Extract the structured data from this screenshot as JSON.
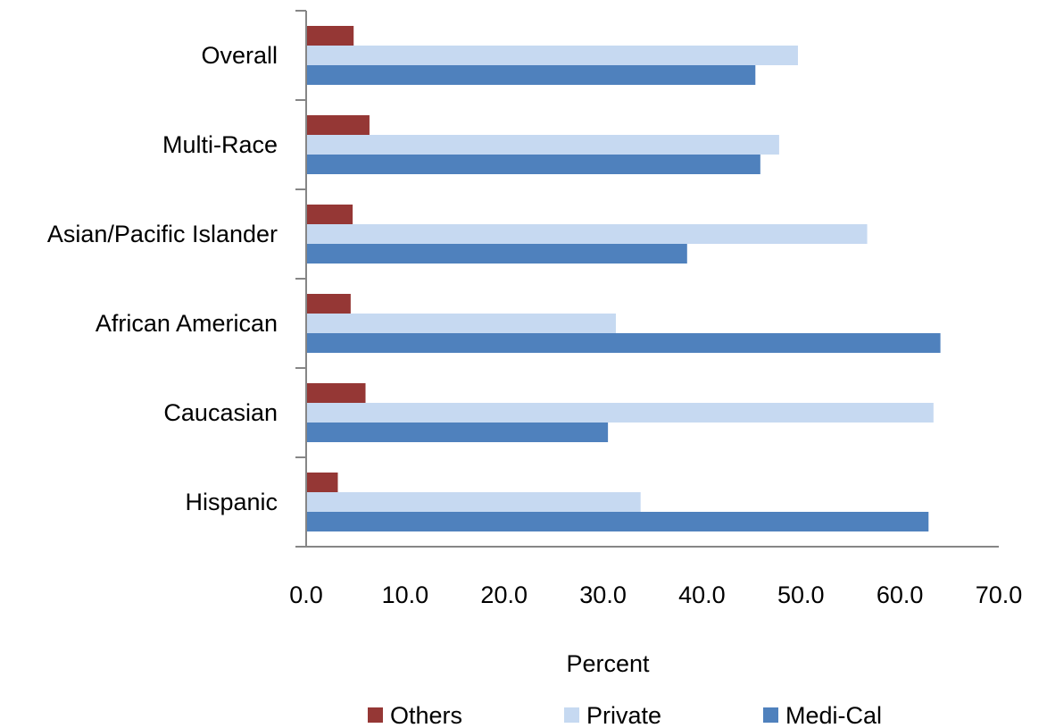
{
  "chart_data": {
    "type": "bar",
    "orientation": "horizontal",
    "categories": [
      "Overall",
      "Multi-Race",
      "Asian/Pacific Islander",
      "African American",
      "Caucasian",
      "Hispanic"
    ],
    "series": [
      {
        "name": "Others",
        "color": "#953735",
        "values": [
          4.8,
          6.4,
          4.7,
          4.5,
          6.0,
          3.2
        ]
      },
      {
        "name": "Private",
        "color": "#c6d9f1",
        "values": [
          49.7,
          47.8,
          56.7,
          31.3,
          63.4,
          33.8
        ]
      },
      {
        "name": "Medi-Cal",
        "color": "#4f81bd",
        "values": [
          45.4,
          45.9,
          38.5,
          64.1,
          30.5,
          62.9
        ]
      }
    ],
    "xlabel": "Percent",
    "ylabel": "",
    "xlim": [
      0,
      70
    ],
    "xticks": [
      "0.0",
      "10.0",
      "20.0",
      "30.0",
      "40.0",
      "50.0",
      "60.0",
      "70.0"
    ],
    "grid": false,
    "legend_position": "bottom"
  }
}
